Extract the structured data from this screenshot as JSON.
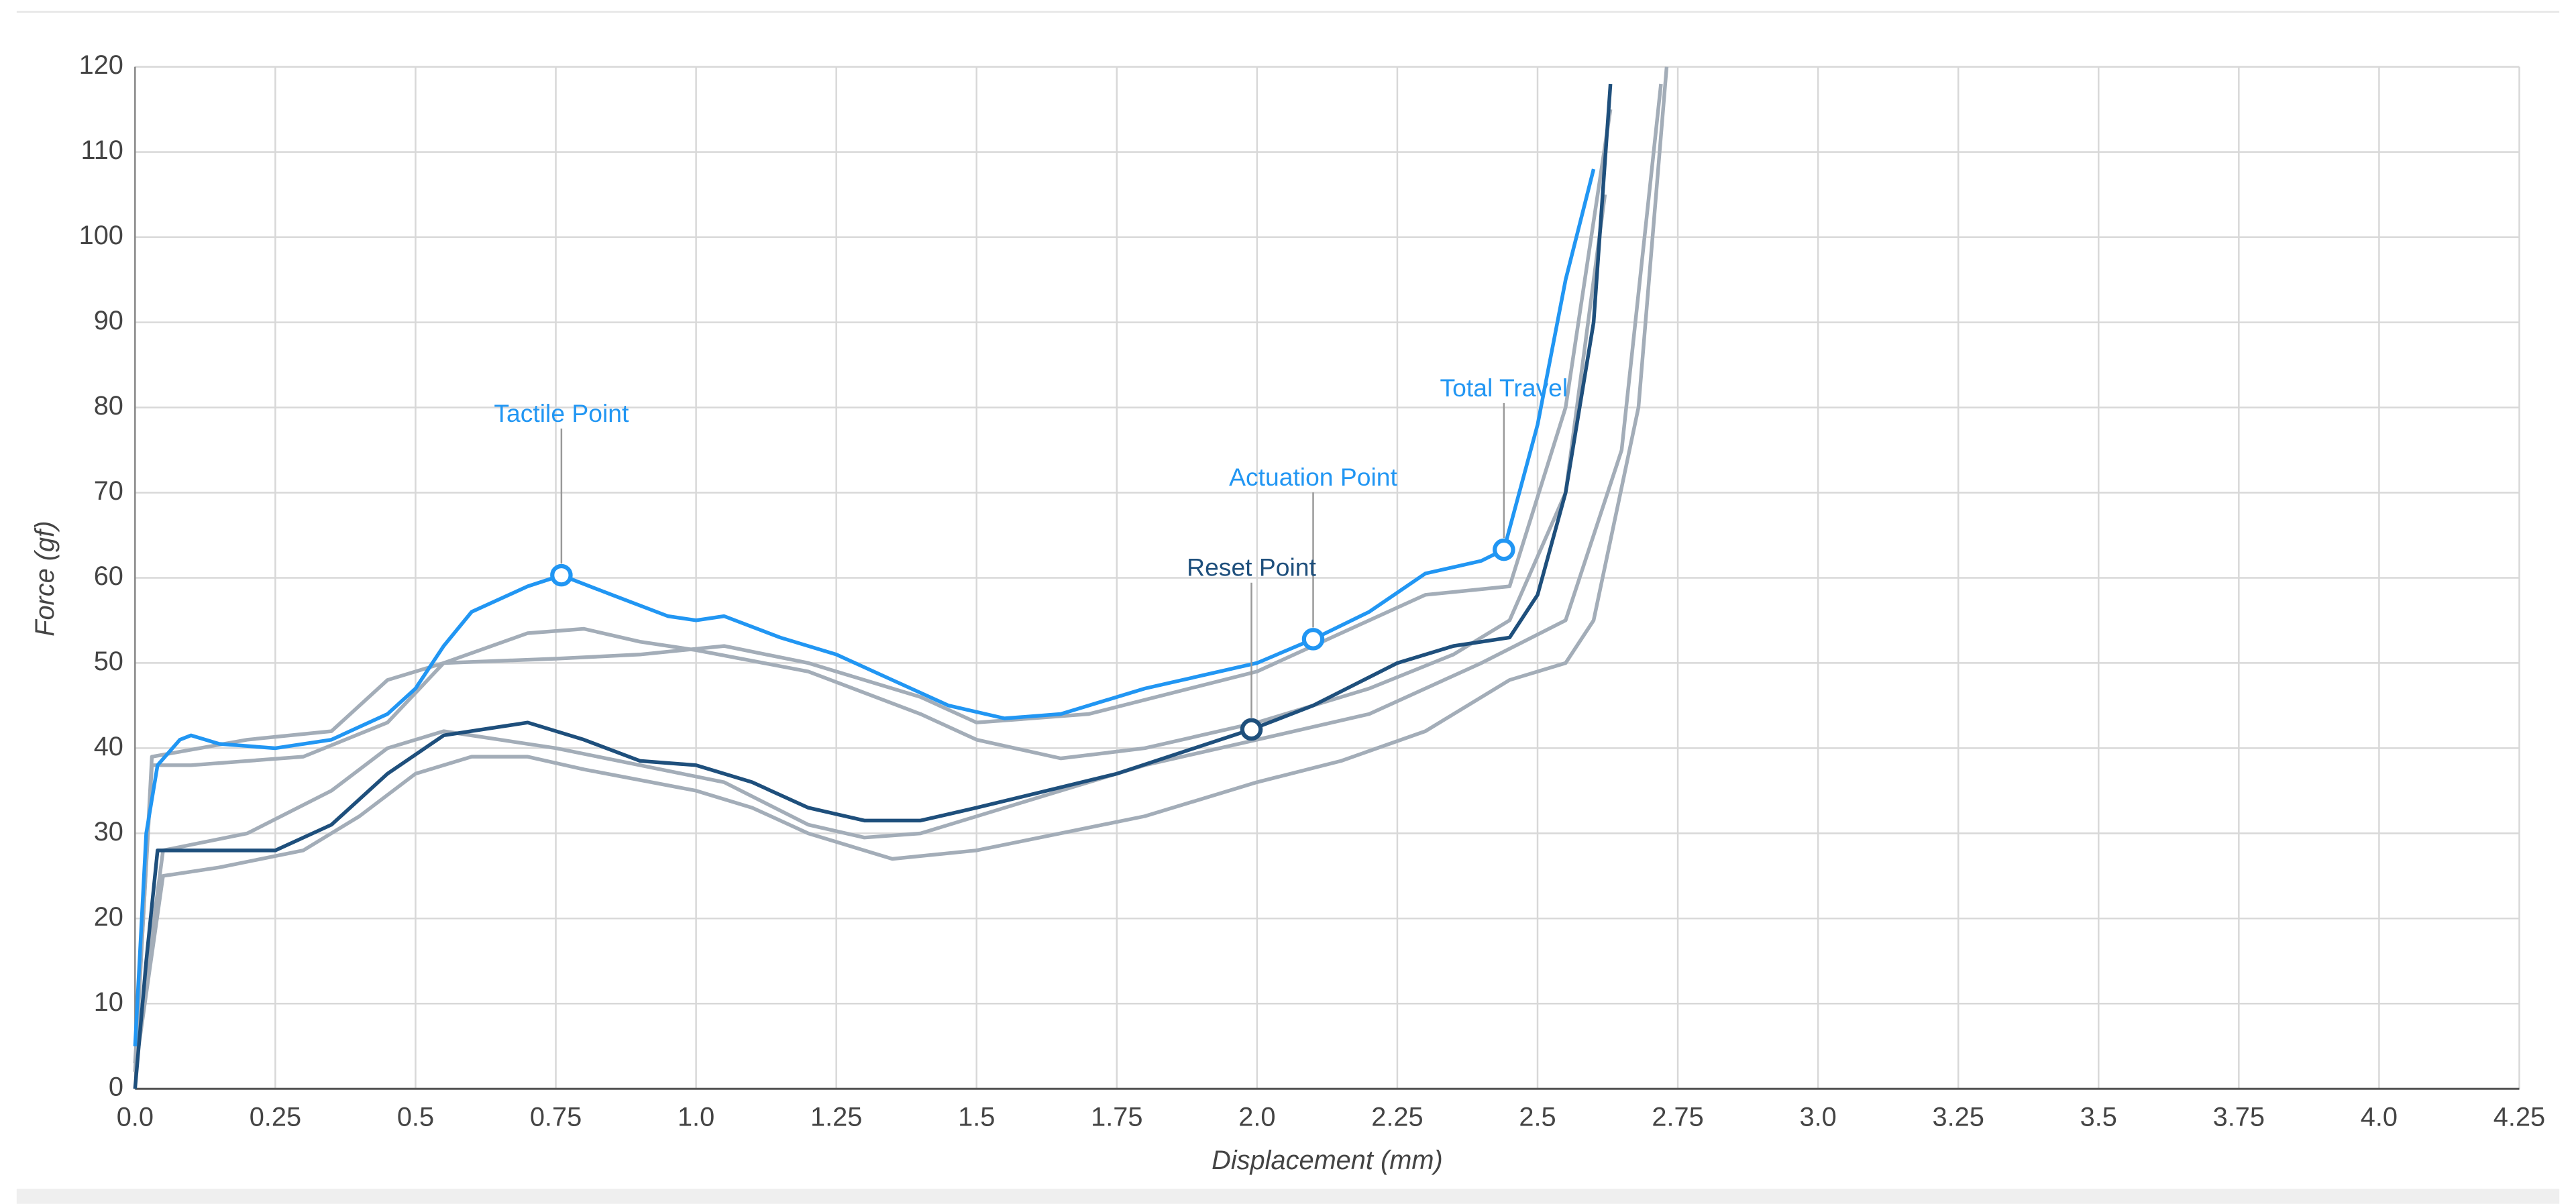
{
  "chart_data": {
    "type": "line",
    "xlabel": "Displacement (mm)",
    "ylabel": "Force (gf)",
    "xlim": [
      0,
      4.25
    ],
    "ylim": [
      0,
      120
    ],
    "xticks": [
      {
        "value": 0,
        "label": "0.0"
      },
      0.25,
      0.5,
      0.75,
      {
        "value": 1,
        "label": "1.0"
      },
      1.25,
      1.5,
      1.75,
      {
        "value": 2,
        "label": "2.0"
      },
      2.25,
      2.5,
      2.75,
      {
        "value": 3,
        "label": "3.0"
      },
      3.25,
      3.5,
      3.75,
      {
        "value": 4,
        "label": "4.0"
      },
      4.25
    ],
    "yticks": [
      0,
      10,
      20,
      30,
      40,
      50,
      60,
      70,
      80,
      90,
      100,
      110,
      120
    ],
    "grid": true,
    "series": [
      {
        "color": "#a3adb8",
        "x": [
          0,
          0.03,
          0.1,
          0.3,
          0.45,
          0.55,
          0.7,
          0.8,
          0.9,
          1.0,
          1.2,
          1.4,
          1.5,
          1.65,
          1.8,
          2.0,
          2.2,
          2.35,
          2.45,
          2.55,
          2.62
        ],
        "values": [
          3,
          38,
          38,
          39,
          43,
          50,
          53.5,
          54,
          52.5,
          51.5,
          49,
          44,
          41,
          38.8,
          40,
          43,
          47,
          51,
          55,
          70,
          105
        ]
      },
      {
        "color": "#a3adb8",
        "x": [
          0,
          0.03,
          0.2,
          0.35,
          0.45,
          0.55,
          0.75,
          0.9,
          1.05,
          1.2,
          1.4,
          1.5,
          1.7,
          2.0,
          2.2,
          2.3,
          2.45,
          2.55,
          2.63
        ],
        "values": [
          2,
          39,
          41,
          42,
          48,
          50,
          50.5,
          51,
          52,
          50,
          46,
          43,
          44,
          49,
          55,
          58,
          59,
          80,
          115
        ]
      },
      {
        "color": "#a3adb8",
        "x": [
          0,
          0.05,
          0.15,
          0.3,
          0.4,
          0.5,
          0.6,
          0.7,
          0.8,
          1.0,
          1.1,
          1.2,
          1.35,
          1.5,
          1.8,
          2.0,
          2.15,
          2.3,
          2.45,
          2.55,
          2.6,
          2.68,
          2.73
        ],
        "values": [
          2,
          25,
          26,
          28,
          32,
          37,
          39,
          39,
          37.5,
          35,
          33,
          30,
          27,
          28,
          32,
          36,
          38.5,
          42,
          48,
          50,
          55,
          80,
          120
        ]
      },
      {
        "color": "#a3adb8",
        "x": [
          0,
          0.05,
          0.2,
          0.35,
          0.45,
          0.55,
          0.75,
          0.9,
          1.05,
          1.2,
          1.3,
          1.4,
          1.6,
          1.8,
          2.0,
          2.2,
          2.4,
          2.55,
          2.65,
          2.72
        ],
        "values": [
          3,
          28,
          30,
          35,
          40,
          42,
          40,
          38,
          36,
          31,
          29.5,
          30,
          34,
          38,
          41,
          44,
          50,
          55,
          75,
          118
        ]
      },
      {
        "color": "#1e4f7c",
        "x": [
          0,
          0.02,
          0.04,
          0.1,
          0.25,
          0.35,
          0.45,
          0.55,
          0.7,
          0.8,
          0.9,
          1.0,
          1.1,
          1.2,
          1.3,
          1.4,
          1.5,
          1.75,
          1.99,
          2.1,
          2.25,
          2.35,
          2.45,
          2.5,
          2.55,
          2.6,
          2.63
        ],
        "values": [
          0,
          15,
          28,
          28,
          28,
          31,
          37,
          41.5,
          43,
          41,
          38.5,
          38,
          36,
          33,
          31.5,
          31.5,
          33,
          37,
          42.2,
          45,
          50,
          52,
          53,
          58,
          70,
          90,
          118
        ]
      },
      {
        "color": "#2196f3",
        "x": [
          0,
          0.02,
          0.04,
          0.08,
          0.1,
          0.15,
          0.25,
          0.35,
          0.45,
          0.5,
          0.55,
          0.6,
          0.7,
          0.76,
          0.85,
          0.95,
          1.0,
          1.05,
          1.15,
          1.25,
          1.35,
          1.45,
          1.55,
          1.65,
          1.8,
          2.0,
          2.1,
          2.2,
          2.3,
          2.4,
          2.44,
          2.5,
          2.55,
          2.6
        ],
        "values": [
          5,
          30,
          38,
          41,
          41.5,
          40.5,
          40,
          41,
          44,
          47,
          52,
          56,
          59,
          60.3,
          58,
          55.5,
          55,
          55.5,
          53,
          51,
          48,
          45,
          43.5,
          44,
          47,
          50,
          52.8,
          56,
          60.5,
          62,
          63.3,
          78,
          95,
          108
        ]
      }
    ],
    "annotations": [
      {
        "text": "Tactile Point",
        "x": 0.76,
        "y": 60.3,
        "color": "#2196f3"
      },
      {
        "text": "Actuation Point",
        "x": 2.1,
        "y": 52.8,
        "color": "#2196f3"
      },
      {
        "text": "Total Travel",
        "x": 2.44,
        "y": 63.3,
        "color": "#2196f3"
      },
      {
        "text": "Reset Point",
        "x": 1.99,
        "y": 42.2,
        "color": "#1e4f7c"
      }
    ]
  }
}
